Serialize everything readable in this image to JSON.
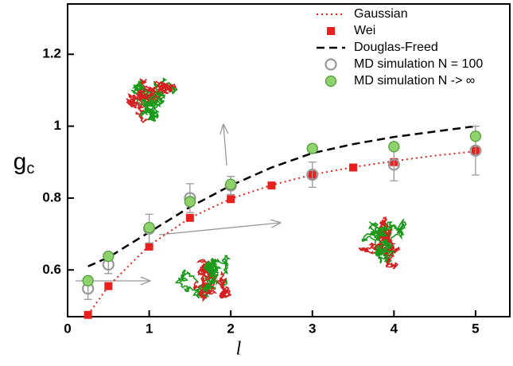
{
  "chart_data": {
    "type": "line",
    "xlabel": "l",
    "ylabel": "g",
    "ylabel_subscript": "c",
    "xlim": [
      0,
      5.42
    ],
    "ylim": [
      0.47,
      1.34
    ],
    "xticks": [
      0,
      1,
      2,
      3,
      4,
      5
    ],
    "yticks": [
      0.6,
      0.8,
      1,
      1.2
    ],
    "series": [
      {
        "name": "Gaussian",
        "color": "#e8201e",
        "mode": "line",
        "style": "dotted",
        "x": [
          0.25,
          0.5,
          1,
          1.5,
          2,
          2.5,
          3,
          3.5,
          4,
          4.5,
          5
        ],
        "values": [
          0.475,
          0.555,
          0.668,
          0.745,
          0.798,
          0.836,
          0.865,
          0.886,
          0.903,
          0.918,
          0.93
        ]
      },
      {
        "name": "Wei",
        "color": "#e8201e",
        "mode": "marker",
        "marker": "square",
        "x": [
          0.25,
          0.5,
          1,
          1.5,
          2,
          2.5,
          3,
          3.5,
          4,
          5
        ],
        "values": [
          0.475,
          0.555,
          0.665,
          0.745,
          0.797,
          0.835,
          0.865,
          0.885,
          0.9,
          0.932
        ]
      },
      {
        "name": "Douglas-Freed",
        "color": "#000000",
        "mode": "line",
        "style": "dashed",
        "x": [
          0.25,
          0.5,
          1,
          1.5,
          2,
          2.5,
          3,
          3.5,
          4,
          4.5,
          5
        ],
        "values": [
          0.61,
          0.635,
          0.705,
          0.775,
          0.835,
          0.885,
          0.925,
          0.95,
          0.97,
          0.985,
          1.0
        ]
      },
      {
        "name": "MD simulation N = 100",
        "color": "#999999",
        "mode": "marker",
        "marker": "open-circle",
        "x": [
          0.25,
          0.5,
          1,
          1.5,
          2,
          3,
          4,
          5
        ],
        "values": [
          0.548,
          0.615,
          0.715,
          0.8,
          0.835,
          0.865,
          0.893,
          0.932
        ],
        "errors": [
          0.03,
          0.025,
          0.04,
          0.04,
          0.025,
          0.035,
          0.045,
          0.068
        ]
      },
      {
        "name": "MD simulation N -> ∞",
        "color": "#8fd16a",
        "mode": "marker",
        "marker": "circle",
        "x": [
          0.25,
          0.5,
          1,
          1.5,
          2,
          3,
          4,
          5
        ],
        "values": [
          0.57,
          0.638,
          0.718,
          0.79,
          0.838,
          0.938,
          0.943,
          0.972
        ]
      }
    ]
  }
}
